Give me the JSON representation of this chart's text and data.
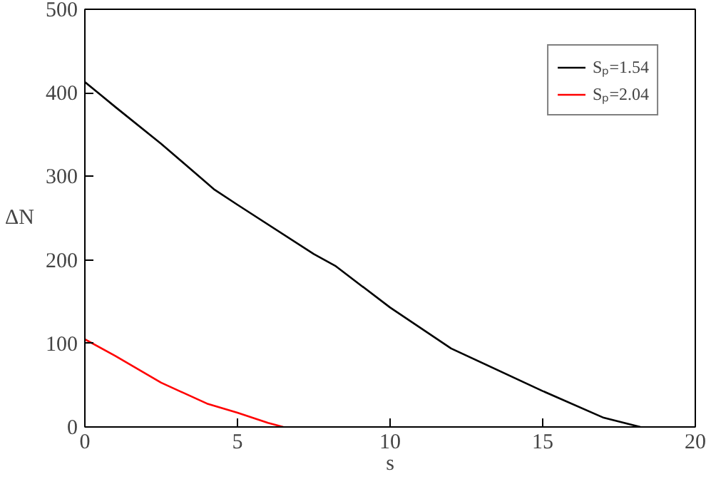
{
  "chart_data": {
    "type": "line",
    "xlabel": "s",
    "ylabel": "ΔN",
    "xlim": [
      0,
      20
    ],
    "ylim": [
      0,
      500
    ],
    "xticks": [
      0,
      5,
      10,
      15,
      20
    ],
    "yticks": [
      0,
      100,
      200,
      300,
      400,
      500
    ],
    "grid": false,
    "legend": "top right",
    "line_style": "solid",
    "marker": "none",
    "series": [
      {
        "name": "Sₚ=1.54",
        "color": "#000000",
        "x": [
          0,
          0.5,
          1,
          2.5,
          4.25,
          5,
          7.5,
          8.2,
          10,
          12,
          15,
          17,
          18.2
        ],
        "values": [
          413,
          398,
          383,
          339,
          284,
          266,
          207,
          193,
          143,
          94,
          43,
          11,
          0
        ]
      },
      {
        "name": "Sₚ=2.04",
        "color": "#ff0000",
        "x": [
          0,
          1,
          2.5,
          4,
          5,
          6,
          6.5
        ],
        "values": [
          105,
          85,
          53,
          28,
          17,
          5,
          0
        ]
      }
    ]
  }
}
